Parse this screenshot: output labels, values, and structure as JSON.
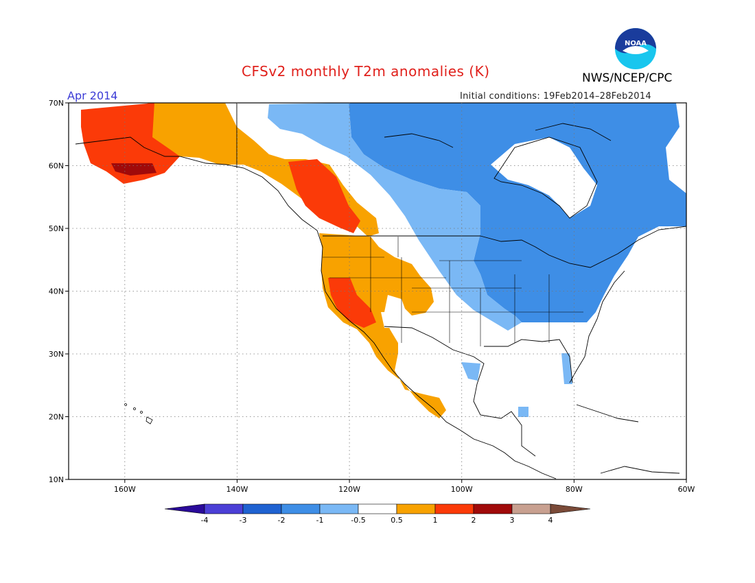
{
  "title": "CFSv2 monthly T2m anomalies (K)",
  "agency": "NWS/NCEP/CPC",
  "logo_text": "NOAA",
  "valid_month": "Apr 2014",
  "initial_conditions": "Initial conditions: 19Feb2014–28Feb2014",
  "map": {
    "lon_range": [
      -170,
      -60
    ],
    "lat_range": [
      10,
      70
    ],
    "lat_labels": [
      "70N",
      "60N",
      "50N",
      "40N",
      "30N",
      "20N",
      "10N"
    ],
    "lon_labels": [
      "160W",
      "140W",
      "120W",
      "100W",
      "80W",
      "60W"
    ],
    "lat_values": [
      70,
      60,
      50,
      40,
      30,
      20,
      10
    ],
    "lon_values": [
      -160,
      -140,
      -120,
      -100,
      -80,
      -60
    ]
  },
  "colorbar": {
    "labels": [
      "-4",
      "-3",
      "-2",
      "-1",
      "-0.5",
      "0.5",
      "1",
      "2",
      "3",
      "4"
    ],
    "colors": [
      "#2a0a9a",
      "#4b3fd6",
      "#1f62d1",
      "#3e8ee6",
      "#7ab8f5",
      "#ffffff",
      "#f8a200",
      "#fb3a08",
      "#a00a0a",
      "#c8a090",
      "#7a4a38"
    ]
  },
  "colors": {
    "title": "#e0201b",
    "month": "#3b3bd6",
    "cool_mid": "#3e8ee6",
    "cool_light": "#7ab8f5",
    "warm_mid": "#f8a200",
    "warm_strong": "#fb3a08",
    "warm_extreme": "#a00a0a"
  }
}
